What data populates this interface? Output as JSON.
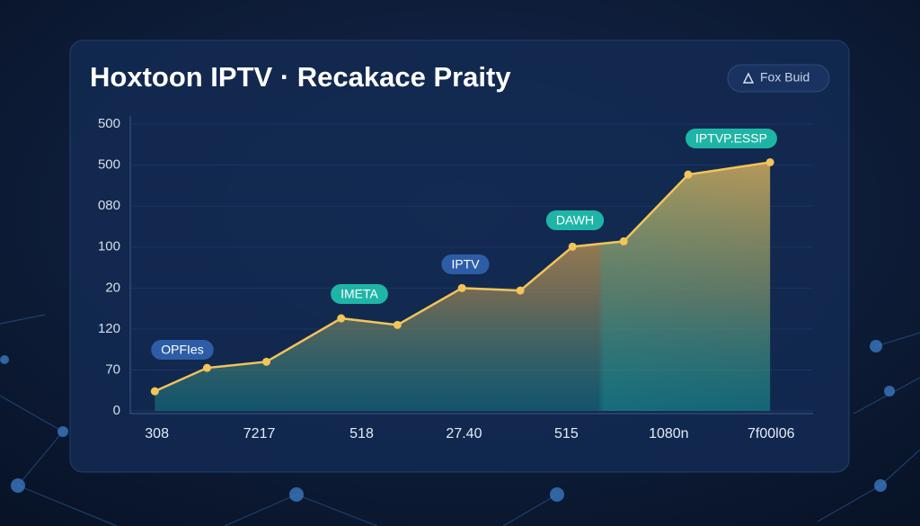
{
  "chart_data": {
    "type": "line",
    "title": "Hoxtoon IPTV · Recakace Praity",
    "button": "Fox Buid",
    "x": [
      -0.02,
      0.49,
      1.07,
      1.8,
      2.35,
      2.98,
      3.55,
      4.06,
      4.56,
      5.19,
      5.99
    ],
    "values": [
      0.48,
      1.05,
      1.2,
      2.26,
      2.1,
      3.0,
      2.94,
      4.01,
      4.14,
      5.77,
      6.07
    ],
    "color": "#f2c45a",
    "xlim": [
      -0.26,
      6.41
    ],
    "xticks": [
      {
        "value": 0,
        "label": "308"
      },
      {
        "value": 1,
        "label": "7217"
      },
      {
        "value": 2,
        "label": "518"
      },
      {
        "value": 3,
        "label": "27.40"
      },
      {
        "value": 4,
        "label": "515"
      },
      {
        "value": 5,
        "label": "1080n"
      },
      {
        "value": 6,
        "label": "7f00l06"
      }
    ],
    "ylim": [
      0,
      7.2
    ],
    "yticks": [
      0,
      {
        "value": 1,
        "label": "70"
      },
      {
        "value": 2,
        "label": "120"
      },
      {
        "value": 3,
        "label": "20"
      },
      {
        "value": 4,
        "label": "100"
      },
      {
        "value": 5,
        "label": "080"
      },
      {
        "value": 6,
        "label": "500"
      },
      {
        "value": 7,
        "label": "500"
      }
    ],
    "grid": true,
    "annotations": [
      "OPFIes",
      "IMETA",
      "IPTV",
      "DAWH",
      "IPTVP.ESSP"
    ]
  }
}
